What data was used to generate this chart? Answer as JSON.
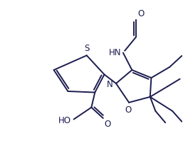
{
  "bg": "#ffffff",
  "lc": "#1c1c50",
  "lw": 1.4,
  "fs": 8.0,
  "fig_w": 2.57,
  "fig_h": 2.19,
  "dpi": 100,
  "xlim": [
    0.0,
    11.0
  ],
  "ylim": [
    1.5,
    10.5
  ]
}
